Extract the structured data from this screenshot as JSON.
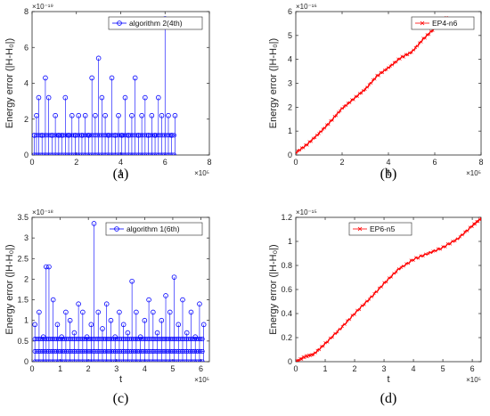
{
  "chart_data": [
    {
      "panel_label": "(a)",
      "type": "stem",
      "xlabel": "t",
      "ylabel": "Energy error (|H-H₀|)",
      "x_exponent": "×10⁵",
      "y_exponent": "×10⁻¹⁹",
      "xlim": [
        0,
        8
      ],
      "ylim": [
        0,
        8
      ],
      "xticks": [
        "0",
        "2",
        "4",
        "6",
        "8"
      ],
      "yticks": [
        "0",
        "2",
        "4",
        "6",
        "8"
      ],
      "legend": "top-right",
      "series": [
        {
          "name": "algorithm 2(4th)",
          "color": "#0000ff",
          "marker": "circle",
          "x": [
            0.1,
            0.2,
            0.3,
            0.45,
            0.6,
            0.75,
            0.9,
            1.05,
            1.2,
            1.35,
            1.5,
            1.65,
            1.8,
            1.95,
            2.1,
            2.25,
            2.4,
            2.55,
            2.7,
            2.85,
            3.0,
            3.15,
            3.3,
            3.45,
            3.6,
            3.75,
            3.9,
            4.05,
            4.2,
            4.35,
            4.5,
            4.65,
            4.8,
            4.95,
            5.1,
            5.25,
            5.4,
            5.55,
            5.7,
            5.85,
            6.0,
            6.15,
            6.3,
            6.45
          ],
          "values": [
            1.1,
            2.2,
            3.2,
            1.1,
            4.3,
            3.2,
            1.1,
            2.2,
            1.1,
            1.1,
            3.2,
            1.1,
            2.2,
            1.1,
            2.2,
            1.1,
            2.2,
            1.1,
            4.3,
            2.2,
            5.4,
            3.2,
            2.2,
            1.1,
            4.3,
            1.1,
            2.2,
            1.1,
            3.2,
            1.1,
            2.2,
            4.3,
            1.1,
            2.2,
            3.2,
            1.1,
            2.2,
            1.1,
            3.2,
            2.2,
            7.6,
            2.2,
            1.1,
            2.2
          ],
          "baseline_levels": [
            0,
            1.1
          ]
        }
      ]
    },
    {
      "panel_label": "(b)",
      "type": "line",
      "xlabel": "t",
      "ylabel": "Energy error (|H-H₀|)",
      "x_exponent": "×10⁵",
      "y_exponent": "×10⁻¹⁶",
      "xlim": [
        0,
        8
      ],
      "ylim": [
        0,
        6
      ],
      "xticks": [
        "0",
        "2",
        "4",
        "6",
        "8"
      ],
      "yticks": [
        "0",
        "1",
        "2",
        "3",
        "4",
        "5",
        "6"
      ],
      "legend": "top-right",
      "series": [
        {
          "name": "EP4-n6",
          "color": "#ff0000",
          "marker": "x",
          "x": [
            0,
            0.5,
            1,
            1.5,
            2,
            2.5,
            3,
            3.5,
            4,
            4.5,
            5,
            5.5,
            6,
            6.5
          ],
          "values": [
            0.1,
            0.45,
            0.9,
            1.4,
            1.95,
            2.35,
            2.75,
            3.3,
            3.65,
            4.05,
            4.3,
            4.85,
            5.3,
            5.75
          ]
        }
      ]
    },
    {
      "panel_label": "(c)",
      "type": "stem",
      "xlabel": "t",
      "ylabel": "Energy error (|H-H₀|)",
      "x_exponent": "×10⁵",
      "y_exponent": "×10⁻¹⁸",
      "xlim": [
        0,
        6.3
      ],
      "ylim": [
        0,
        3.5
      ],
      "xticks": [
        "0",
        "1",
        "2",
        "3",
        "4",
        "5",
        "6"
      ],
      "yticks": [
        "0",
        "0.5",
        "1",
        "1.5",
        "2",
        "2.5",
        "3",
        "3.5"
      ],
      "legend": "top-right",
      "series": [
        {
          "name": "algorithm 1(6th)",
          "color": "#0000ff",
          "marker": "circle",
          "x": [
            0.1,
            0.25,
            0.4,
            0.5,
            0.6,
            0.75,
            0.9,
            1.05,
            1.2,
            1.35,
            1.5,
            1.65,
            1.8,
            1.95,
            2.1,
            2.2,
            2.35,
            2.5,
            2.65,
            2.8,
            2.95,
            3.1,
            3.25,
            3.4,
            3.55,
            3.7,
            3.85,
            4.0,
            4.15,
            4.3,
            4.45,
            4.6,
            4.75,
            4.9,
            5.05,
            5.2,
            5.35,
            5.5,
            5.65,
            5.8,
            5.95,
            6.1
          ],
          "values": [
            0.9,
            1.2,
            0.6,
            2.3,
            2.3,
            1.5,
            0.9,
            0.6,
            1.2,
            1.0,
            0.7,
            1.4,
            1.2,
            0.6,
            0.9,
            3.35,
            1.2,
            0.8,
            1.4,
            1.0,
            0.6,
            1.2,
            0.9,
            0.7,
            1.95,
            1.2,
            0.6,
            1.0,
            1.5,
            1.2,
            0.7,
            1.0,
            1.6,
            1.2,
            2.05,
            0.9,
            1.5,
            0.7,
            1.2,
            0.6,
            1.4,
            0.9
          ],
          "baseline_levels": [
            0,
            0.25,
            0.55
          ]
        }
      ]
    },
    {
      "panel_label": "(d)",
      "type": "line",
      "xlabel": "t",
      "ylabel": "Energy error (|H-H₀|)",
      "x_exponent": "×10⁵",
      "y_exponent": "×10⁻¹⁵",
      "xlim": [
        0,
        6.3
      ],
      "ylim": [
        0,
        1.2
      ],
      "xticks": [
        "0",
        "1",
        "2",
        "3",
        "4",
        "5",
        "6"
      ],
      "yticks": [
        "0",
        "0.2",
        "0.4",
        "0.6",
        "0.8",
        "1",
        "1.2"
      ],
      "legend": "top-left",
      "series": [
        {
          "name": "EP6-n5",
          "color": "#ff0000",
          "marker": "x",
          "x": [
            0,
            0.3,
            0.6,
            1,
            1.5,
            2,
            2.5,
            3,
            3.5,
            4,
            4.5,
            5,
            5.5,
            6,
            6.3
          ],
          "values": [
            0,
            0.04,
            0.06,
            0.15,
            0.27,
            0.4,
            0.52,
            0.65,
            0.77,
            0.85,
            0.9,
            0.95,
            1.02,
            1.13,
            1.19
          ]
        }
      ]
    }
  ]
}
